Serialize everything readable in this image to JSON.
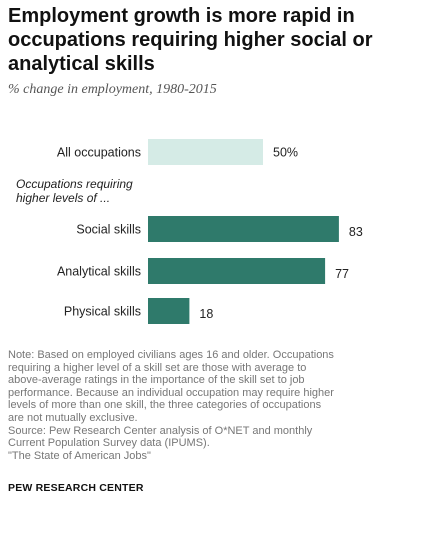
{
  "header": {
    "title": "Employment growth is more rapid in occupations requiring higher social or analytical skills",
    "subtitle": "% change in employment, 1980-2015"
  },
  "colors": {
    "highlight": "#d5ebe6",
    "bars": "#2f7a6b",
    "text": "#222222"
  },
  "chart_data": {
    "type": "bar",
    "orientation": "horizontal",
    "title": "Employment growth is more rapid in occupations requiring higher social or analytical skills",
    "subtitle": "% change in employment, 1980-2015",
    "group_label": "Occupations requiring higher levels of ...",
    "categories": [
      "All occupations",
      "Social skills",
      "Analytical skills",
      "Physical skills"
    ],
    "values": [
      50,
      83,
      77,
      18
    ],
    "value_labels": [
      "50%",
      "83",
      "77",
      "18"
    ],
    "xlim": [
      0,
      100
    ],
    "grid": false,
    "legend": "none"
  },
  "notes": {
    "lines": [
      "Note: Based on employed civilians ages 16 and older. Occupations",
      "requiring a higher level of a skill set are those with average to",
      "above-average ratings in the importance of the skill set to job",
      "performance. Because an individual occupation may require higher",
      "levels of more than one skill, the three categories of occupations",
      "are not mutually exclusive.",
      "Source: Pew Research Center analysis of O*NET and monthly",
      "Current Population Survey data (IPUMS).",
      "\"The State of American Jobs\""
    ],
    "brand": "PEW RESEARCH CENTER"
  }
}
